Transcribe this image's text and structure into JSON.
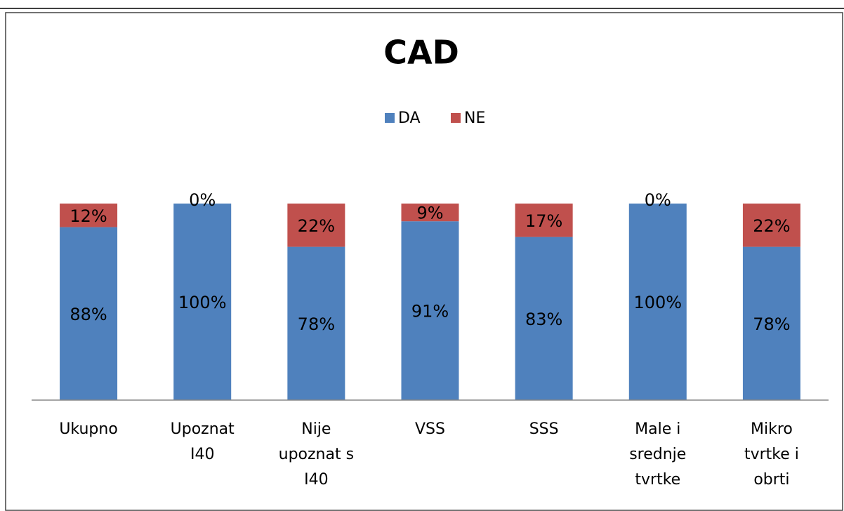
{
  "chart_data": {
    "type": "stacked_bar",
    "title": "CAD",
    "categories": [
      "Ukupno",
      "Upoznat I40",
      "Nije upoznat s I40",
      "VSS",
      "SSS",
      "Male i srednje tvrtke",
      "Mikro tvrtke i obrti"
    ],
    "series": [
      {
        "name": "DA",
        "color": "#4f81bd",
        "values": [
          88,
          100,
          78,
          91,
          83,
          100,
          78
        ],
        "value_labels": [
          "88%",
          "100%",
          "78%",
          "91%",
          "83%",
          "100%",
          "78%"
        ]
      },
      {
        "name": "NE",
        "color": "#c0504d",
        "values": [
          12,
          0,
          22,
          9,
          17,
          0,
          22
        ],
        "value_labels": [
          "12%",
          "0%",
          "22%",
          "9%",
          "17%",
          "0%",
          "22%"
        ]
      }
    ],
    "ylim": [
      0,
      100
    ],
    "legend": "top"
  }
}
